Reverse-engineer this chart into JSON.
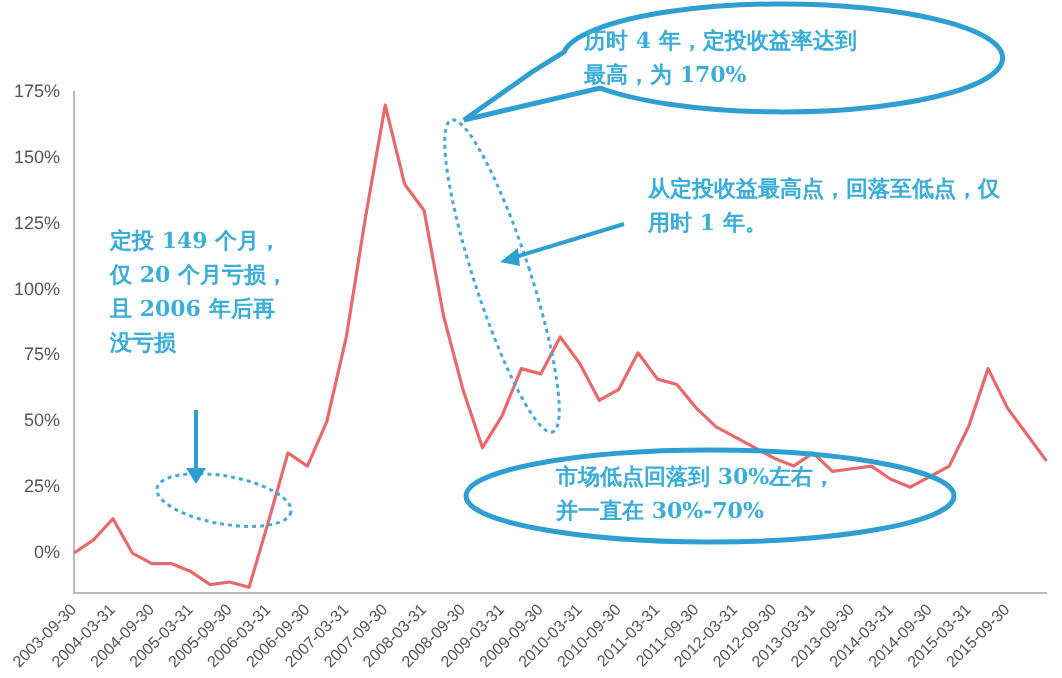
{
  "chart_data": {
    "type": "line",
    "categories": [
      "2003-09-30",
      null,
      "2004-03-31",
      null,
      "2004-09-30",
      null,
      "2005-03-31",
      null,
      "2005-09-30",
      null,
      "2006-03-31",
      null,
      "2006-09-30",
      null,
      "2007-03-31",
      null,
      "2007-09-30",
      null,
      "2008-03-31",
      null,
      "2008-09-30",
      null,
      "2009-03-31",
      null,
      "2009-09-30",
      null,
      "2010-03-31",
      null,
      "2010-09-30",
      null,
      "2011-03-31",
      null,
      "2011-09-30",
      null,
      "2012-03-31",
      null,
      "2012-09-30",
      null,
      "2013-03-31",
      null,
      "2013-09-30",
      null,
      "2014-03-31",
      null,
      "2014-09-30",
      null,
      "2015-03-31",
      null,
      "2015-09-30",
      null,
      null
    ],
    "series": [
      {
        "color": "#e8696b",
        "values": [
          0,
          5,
          13,
          0,
          -4,
          -4,
          -7,
          -12,
          -11,
          -13,
          12,
          38,
          33,
          50,
          82,
          128,
          170,
          140,
          130,
          90,
          62,
          40,
          52,
          70,
          68,
          82,
          72,
          58,
          62,
          76,
          66,
          64,
          55,
          48,
          44,
          40,
          36,
          33,
          38,
          31,
          32,
          33,
          28,
          25,
          29,
          33,
          48,
          70,
          55,
          45,
          35
        ]
      }
    ],
    "ylim": [
      -15,
      175
    ],
    "yticks": [
      {
        "value": 0,
        "label": "0%"
      },
      {
        "value": 25,
        "label": "25%"
      },
      {
        "value": 50,
        "label": "50%"
      },
      {
        "value": 75,
        "label": "75%"
      },
      {
        "value": 100,
        "label": "100%"
      },
      {
        "value": 125,
        "label": "125%"
      },
      {
        "value": 150,
        "label": "150%"
      },
      {
        "value": 175,
        "label": "175%"
      }
    ],
    "grid": false,
    "legend": false,
    "marker": "none",
    "line_style": "solid",
    "annotations": [
      "历时 4 年，定投收益率达到最高，为 170%",
      "从定投收益最高点，回落至低点，仅用时 1 年。",
      "定投 149 个月，仅 20 个月亏损，且 2006 年后再没亏损",
      "市场低点回落到 30%左右，并一直在 30%-70%"
    ]
  }
}
